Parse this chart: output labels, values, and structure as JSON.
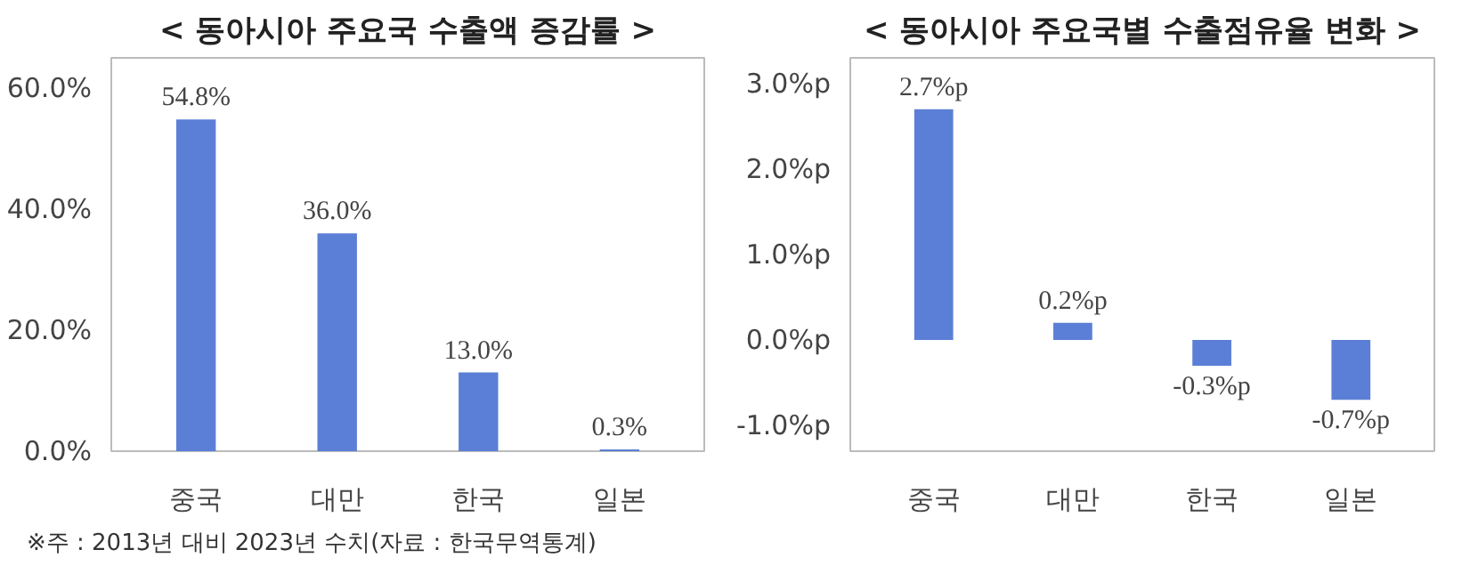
{
  "chart_data": [
    {
      "type": "bar",
      "title": "< 동아시아 주요국 수출액 증감률 >",
      "categories": [
        "중국",
        "대만",
        "한국",
        "일본"
      ],
      "values": [
        54.8,
        36.0,
        13.0,
        0.3
      ],
      "color": "#5b7fd6",
      "value_labels": [
        "54.8%",
        "36.0%",
        "13.0%",
        "0.3%"
      ],
      "ylim": [
        0,
        65
      ],
      "yticks": [
        {
          "value": 0,
          "label": "0.0%"
        },
        {
          "value": 20,
          "label": "20.0%"
        },
        {
          "value": 40,
          "label": "40.0%"
        },
        {
          "value": 60,
          "label": "60.0%"
        }
      ],
      "annotations": [
        "※주 : 2013년 대비 2023년 수치(자료 : 한국무역통계)"
      ]
    },
    {
      "type": "bar",
      "title": "< 동아시아 주요국별 수출점유율 변화 >",
      "categories": [
        "중국",
        "대만",
        "한국",
        "일본"
      ],
      "values": [
        2.7,
        0.2,
        -0.3,
        -0.7
      ],
      "color": "#5b7fd6",
      "value_labels": [
        "2.7%p",
        "0.2%p",
        "-0.3%p",
        "-0.7%p"
      ],
      "ylim": [
        -1.3,
        3.3
      ],
      "yticks": [
        {
          "value": -1,
          "label": "-1.0%p"
        },
        {
          "value": 0,
          "label": "0.0%p"
        },
        {
          "value": 1,
          "label": "1.0%p"
        },
        {
          "value": 2,
          "label": "2.0%p"
        },
        {
          "value": 3,
          "label": "3.0%p"
        }
      ]
    }
  ]
}
